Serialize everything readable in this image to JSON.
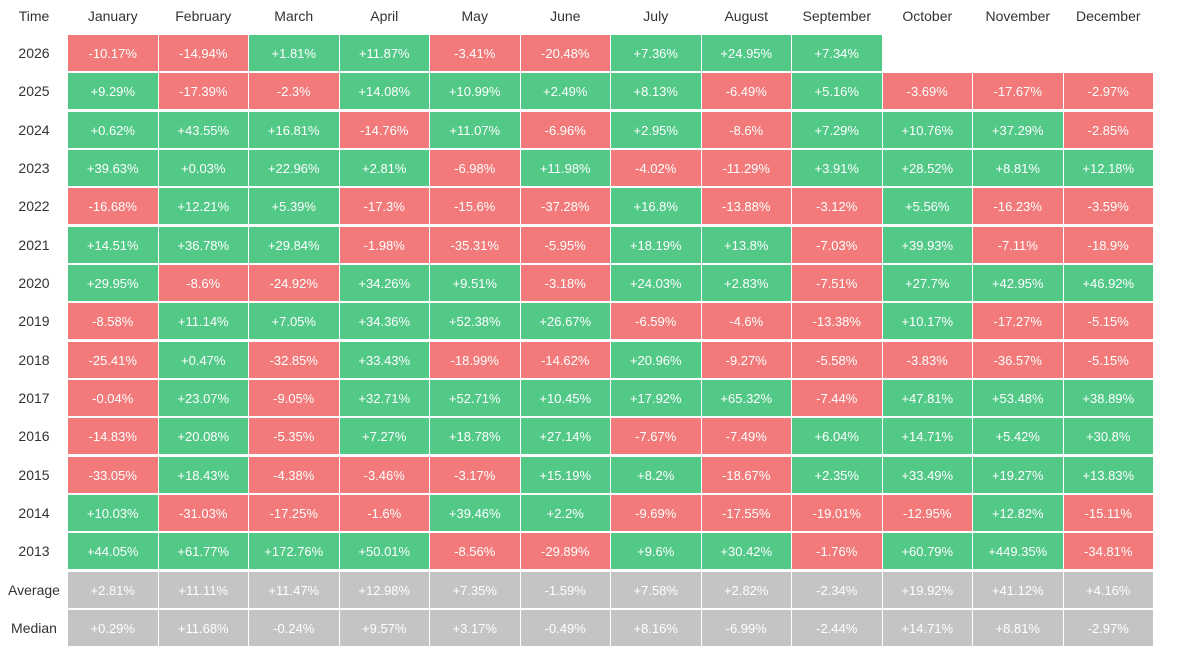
{
  "table": {
    "corner_label": "Time",
    "months": [
      "January",
      "February",
      "March",
      "April",
      "May",
      "June",
      "July",
      "August",
      "September",
      "October",
      "November",
      "December"
    ],
    "colors": {
      "positive": "#52c987",
      "negative": "#f27a7a",
      "summary": "#c4c4c4"
    },
    "rows": [
      {
        "label": "2026",
        "values": [
          "-10.17%",
          "-14.94%",
          "+1.81%",
          "+11.87%",
          "-3.41%",
          "-20.48%",
          "+7.36%",
          "+24.95%",
          "+7.34%",
          "",
          "",
          ""
        ]
      },
      {
        "label": "2025",
        "values": [
          "+9.29%",
          "-17.39%",
          "-2.3%",
          "+14.08%",
          "+10.99%",
          "+2.49%",
          "+8.13%",
          "-6.49%",
          "+5.16%",
          "-3.69%",
          "-17.67%",
          "-2.97%"
        ]
      },
      {
        "label": "2024",
        "values": [
          "+0.62%",
          "+43.55%",
          "+16.81%",
          "-14.76%",
          "+11.07%",
          "-6.96%",
          "+2.95%",
          "-8.6%",
          "+7.29%",
          "+10.76%",
          "+37.29%",
          "-2.85%"
        ]
      },
      {
        "label": "2023",
        "values": [
          "+39.63%",
          "+0.03%",
          "+22.96%",
          "+2.81%",
          "-6.98%",
          "+11.98%",
          "-4.02%",
          "-11.29%",
          "+3.91%",
          "+28.52%",
          "+8.81%",
          "+12.18%"
        ]
      },
      {
        "label": "2022",
        "values": [
          "-16.68%",
          "+12.21%",
          "+5.39%",
          "-17.3%",
          "-15.6%",
          "-37.28%",
          "+16.8%",
          "-13.88%",
          "-3.12%",
          "+5.56%",
          "-16.23%",
          "-3.59%"
        ]
      },
      {
        "label": "2021",
        "values": [
          "+14.51%",
          "+36.78%",
          "+29.84%",
          "-1.98%",
          "-35.31%",
          "-5.95%",
          "+18.19%",
          "+13.8%",
          "-7.03%",
          "+39.93%",
          "-7.11%",
          "-18.9%"
        ]
      },
      {
        "label": "2020",
        "values": [
          "+29.95%",
          "-8.6%",
          "-24.92%",
          "+34.26%",
          "+9.51%",
          "-3.18%",
          "+24.03%",
          "+2.83%",
          "-7.51%",
          "+27.7%",
          "+42.95%",
          "+46.92%"
        ]
      },
      {
        "label": "2019",
        "values": [
          "-8.58%",
          "+11.14%",
          "+7.05%",
          "+34.36%",
          "+52.38%",
          "+26.67%",
          "-6.59%",
          "-4.6%",
          "-13.38%",
          "+10.17%",
          "-17.27%",
          "-5.15%"
        ]
      },
      {
        "label": "2018",
        "values": [
          "-25.41%",
          "+0.47%",
          "-32.85%",
          "+33.43%",
          "-18.99%",
          "-14.62%",
          "+20.96%",
          "-9.27%",
          "-5.58%",
          "-3.83%",
          "-36.57%",
          "-5.15%"
        ]
      },
      {
        "label": "2017",
        "values": [
          "-0.04%",
          "+23.07%",
          "-9.05%",
          "+32.71%",
          "+52.71%",
          "+10.45%",
          "+17.92%",
          "+65.32%",
          "-7.44%",
          "+47.81%",
          "+53.48%",
          "+38.89%"
        ]
      },
      {
        "label": "2016",
        "values": [
          "-14.83%",
          "+20.08%",
          "-5.35%",
          "+7.27%",
          "+18.78%",
          "+27.14%",
          "-7.67%",
          "-7.49%",
          "+6.04%",
          "+14.71%",
          "+5.42%",
          "+30.8%"
        ]
      },
      {
        "label": "2015",
        "values": [
          "-33.05%",
          "+18.43%",
          "-4.38%",
          "-3.46%",
          "-3.17%",
          "+15.19%",
          "+8.2%",
          "-18.67%",
          "+2.35%",
          "+33.49%",
          "+19.27%",
          "+13.83%"
        ]
      },
      {
        "label": "2014",
        "values": [
          "+10.03%",
          "-31.03%",
          "-17.25%",
          "-1.6%",
          "+39.46%",
          "+2.2%",
          "-9.69%",
          "-17.55%",
          "-19.01%",
          "-12.95%",
          "+12.82%",
          "-15.11%"
        ]
      },
      {
        "label": "2013",
        "values": [
          "+44.05%",
          "+61.77%",
          "+172.76%",
          "+50.01%",
          "-8.56%",
          "-29.89%",
          "+9.6%",
          "+30.42%",
          "-1.76%",
          "+60.79%",
          "+449.35%",
          "-34.81%"
        ]
      }
    ],
    "summary_rows": [
      {
        "label": "Average",
        "values": [
          "+2.81%",
          "+11.11%",
          "+11.47%",
          "+12.98%",
          "+7.35%",
          "-1.59%",
          "+7.58%",
          "+2.82%",
          "-2.34%",
          "+19.92%",
          "+41.12%",
          "+4.16%"
        ]
      },
      {
        "label": "Median",
        "values": [
          "+0.29%",
          "+11.68%",
          "-0.24%",
          "+9.57%",
          "+3.17%",
          "-0.49%",
          "+8.16%",
          "-6.99%",
          "-2.44%",
          "+14.71%",
          "+8.81%",
          "-2.97%"
        ]
      }
    ]
  }
}
